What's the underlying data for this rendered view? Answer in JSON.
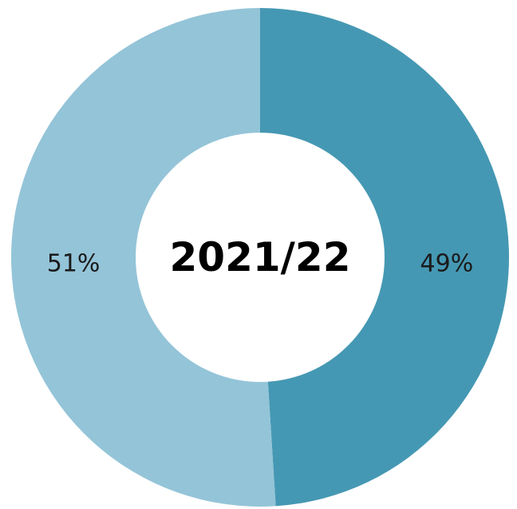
{
  "chart_data": {
    "type": "pie",
    "variant": "donut",
    "center_label": "2021/22",
    "slices": [
      {
        "value": 49,
        "label": "49%",
        "color": "#4598b3"
      },
      {
        "value": 51,
        "label": "51%",
        "color": "#94c4d8"
      }
    ],
    "legend": "none"
  }
}
